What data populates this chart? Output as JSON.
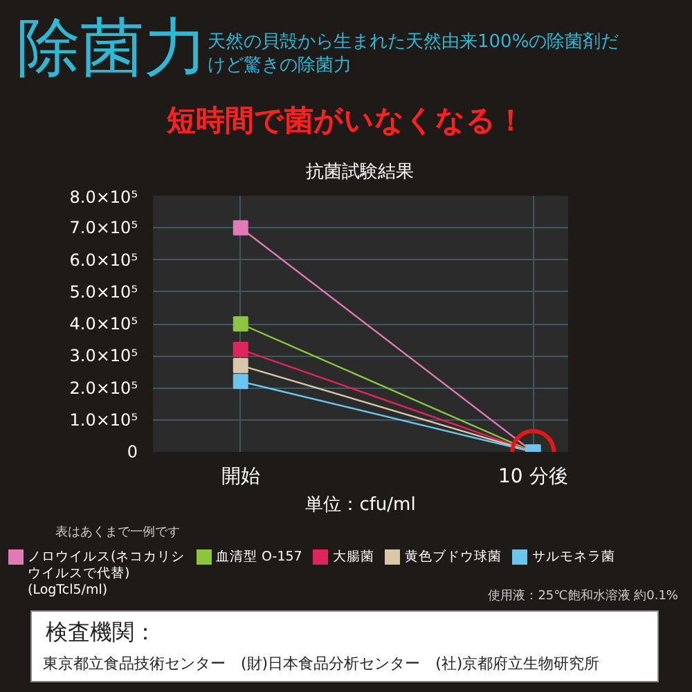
{
  "chart_data": {
    "type": "line",
    "title": "除菌力",
    "subtitle": "天然の貝殻から生まれた天然由来100%の除菌剤だけど驚きの除菌力",
    "xlabel": "単位：cfu/ml",
    "annotations": [
      "短時間で菌がいなくなる！",
      "抗菌試験結果",
      "表はあくまで一例です",
      "使用液：25℃飽和水溶液 約0.1%",
      "検査機関：",
      "東京都立食品技術センター　(財)日本食品分析センター　(社)京都府立生物研究所"
    ],
    "categories": [
      "開始",
      "10 分後"
    ],
    "series": [
      {
        "name": "ノロウイルス(ネコカリシウイルスで代替)(LogTcl5/ml)",
        "color": "#e07bb5",
        "values": [
          700000,
          0
        ]
      },
      {
        "name": "血清型 O-157",
        "color": "#8cc63f",
        "values": [
          400000,
          0
        ]
      },
      {
        "name": "大腸菌",
        "color": "#e0245e",
        "values": [
          320000,
          0
        ]
      },
      {
        "name": "黄色ブドウ球菌",
        "color": "#d8c8a8",
        "values": [
          270000,
          0
        ]
      },
      {
        "name": "サルモネラ菌",
        "color": "#6cc5ec",
        "values": [
          220000,
          0
        ]
      }
    ],
    "ylim": [
      0,
      800000
    ],
    "yticks": [
      0,
      {
        "value": 100000,
        "label": "1.0×10⁵"
      },
      {
        "value": 200000,
        "label": "2.0×10⁵"
      },
      {
        "value": 300000,
        "label": "3.0×10⁵"
      },
      {
        "value": 400000,
        "label": "4.0×10⁵"
      },
      {
        "value": 500000,
        "label": "5.0×10⁵"
      },
      {
        "value": 600000,
        "label": "6.0×10⁵"
      },
      {
        "value": 700000,
        "label": "7.0×10⁵"
      },
      {
        "value": 800000,
        "label": "8.0×10⁵"
      }
    ],
    "grid": true,
    "legend": "bottom",
    "marker": "square",
    "line_style": "solid"
  }
}
